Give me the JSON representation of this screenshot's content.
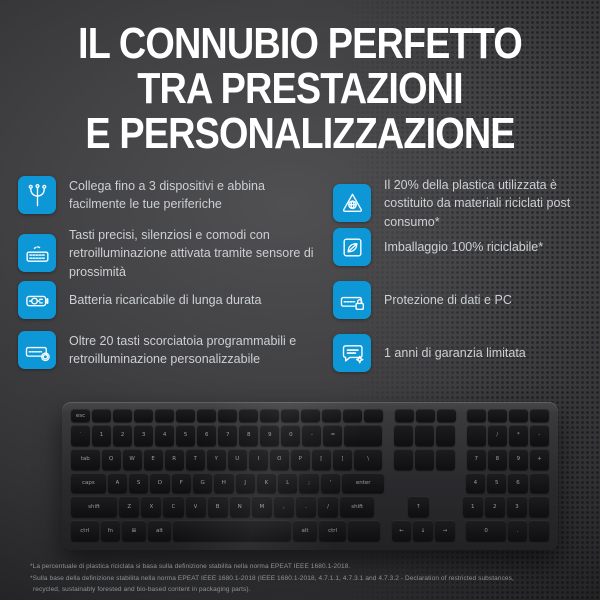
{
  "title": {
    "lines": [
      "IL CONNUBIO PERFETTO",
      "TRA PRESTAZIONI",
      "E PERSONALIZZAZIONE"
    ]
  },
  "features": {
    "left": [
      {
        "icon": "multi-device-icon",
        "text": "Collega fino a 3 dispositivi e abbina facilmente le tue periferiche"
      },
      {
        "icon": "backlit-keyboard-icon",
        "text": "Tasti precisi, silenziosi e comodi con retroilluminazione attivata tramite sensore di prossimità"
      },
      {
        "icon": "rechargeable-battery-icon",
        "text": "Batteria ricaricabile di lunga durata"
      },
      {
        "icon": "programmable-keys-icon",
        "text": "Oltre 20 tasti scorciatoia programmabili e retroilluminazione personalizzabile"
      }
    ],
    "right": [
      {
        "icon": "recycled-plastic-icon",
        "text": "Il 20% della plastica utilizzata è costituito da materiali riciclati post consumo*"
      },
      {
        "icon": "recyclable-packaging-icon",
        "text": "Imballaggio 100% riciclabile*"
      },
      {
        "icon": "data-protection-icon",
        "text": "Protezione di dati e PC"
      },
      {
        "icon": "warranty-icon",
        "text": "1 anni di garanzia limitata"
      }
    ]
  },
  "footnotes": [
    "*La percentuale di plastica riciclata si basa sulla definizione stabilita nella norma EPEAT IEEE 1680.1-2018.",
    "*Sulla base della definizione stabilita nella norma EPEAT IEEE 1680.1-2018 (IEEE 1680.1-2018, 4.7.1.1, 4.7.3.1 and 4.7.3.2 - Declaration of restricted substances,",
    "recycled, sustainably forested and bio-based content in packaging parts)."
  ],
  "colors": {
    "accent_blue": "#0e97d6",
    "title_text": "#ffffff",
    "feature_text": "#ccd0d3",
    "footnote_text": "#8e9295",
    "background_center": "#505052",
    "background_edge": "#161618"
  },
  "keyboard": {
    "rows": [
      {
        "fn": true,
        "cells": [
          [
            "esc",
            1
          ],
          [
            "",
            1
          ],
          [
            "",
            1
          ],
          [
            "",
            1
          ],
          [
            "",
            1
          ],
          [
            "",
            1
          ],
          [
            "",
            1
          ],
          [
            "",
            1
          ],
          [
            "",
            1
          ],
          [
            "",
            1
          ],
          [
            "",
            1
          ],
          [
            "",
            1
          ],
          [
            "",
            1
          ],
          [
            "",
            1
          ],
          [
            "",
            1
          ],
          [
            "",
            0.4,
            "s"
          ],
          [
            "",
            1
          ],
          [
            "",
            1
          ],
          [
            "",
            1
          ],
          [
            "",
            0.4,
            "s"
          ],
          [
            "",
            1
          ],
          [
            "",
            1
          ],
          [
            "",
            1
          ],
          [
            "",
            1
          ]
        ]
      },
      {
        "cells": [
          [
            "`",
            1
          ],
          [
            "1",
            1
          ],
          [
            "2",
            1
          ],
          [
            "3",
            1
          ],
          [
            "4",
            1
          ],
          [
            "5",
            1
          ],
          [
            "6",
            1
          ],
          [
            "7",
            1
          ],
          [
            "8",
            1
          ],
          [
            "9",
            1
          ],
          [
            "0",
            1
          ],
          [
            "-",
            1
          ],
          [
            "=",
            1
          ],
          [
            "",
            2
          ],
          [
            "",
            0.4,
            "s"
          ],
          [
            "",
            1
          ],
          [
            "",
            1
          ],
          [
            "",
            1
          ],
          [
            "",
            0.4,
            "s"
          ],
          [
            "",
            1
          ],
          [
            "/",
            1
          ],
          [
            "*",
            1
          ],
          [
            "-",
            1
          ]
        ]
      },
      {
        "cells": [
          [
            "tab",
            1.5
          ],
          [
            "Q",
            1
          ],
          [
            "W",
            1
          ],
          [
            "E",
            1
          ],
          [
            "R",
            1
          ],
          [
            "T",
            1
          ],
          [
            "Y",
            1
          ],
          [
            "U",
            1
          ],
          [
            "I",
            1
          ],
          [
            "O",
            1
          ],
          [
            "P",
            1
          ],
          [
            "[",
            1
          ],
          [
            "]",
            1
          ],
          [
            "\\",
            1.5
          ],
          [
            "",
            0.4,
            "s"
          ],
          [
            "",
            1
          ],
          [
            "",
            1
          ],
          [
            "",
            1
          ],
          [
            "",
            0.4,
            "s"
          ],
          [
            "7",
            1
          ],
          [
            "8",
            1
          ],
          [
            "9",
            1
          ],
          [
            "+",
            1
          ]
        ]
      },
      {
        "cells": [
          [
            "caps",
            1.8
          ],
          [
            "A",
            1
          ],
          [
            "S",
            1
          ],
          [
            "D",
            1
          ],
          [
            "F",
            1
          ],
          [
            "G",
            1
          ],
          [
            "H",
            1
          ],
          [
            "J",
            1
          ],
          [
            "K",
            1
          ],
          [
            "L",
            1
          ],
          [
            ";",
            1
          ],
          [
            "'",
            1
          ],
          [
            "enter",
            2.2
          ],
          [
            "",
            0.4,
            "s"
          ],
          [
            "",
            3,
            "e"
          ],
          [
            "",
            0.4,
            "s"
          ],
          [
            "4",
            1
          ],
          [
            "5",
            1
          ],
          [
            "6",
            1
          ],
          [
            "",
            1
          ]
        ]
      },
      {
        "cells": [
          [
            "shift",
            2.3
          ],
          [
            "Z",
            1
          ],
          [
            "X",
            1
          ],
          [
            "C",
            1
          ],
          [
            "V",
            1
          ],
          [
            "B",
            1
          ],
          [
            "N",
            1
          ],
          [
            "M",
            1
          ],
          [
            ",",
            1
          ],
          [
            ".",
            1
          ],
          [
            "/",
            1
          ],
          [
            "shift",
            1.7
          ],
          [
            "",
            0.4,
            "s"
          ],
          [
            "",
            1,
            "e"
          ],
          [
            "↑",
            1
          ],
          [
            "",
            1,
            "e"
          ],
          [
            "",
            0.4,
            "s"
          ],
          [
            "1",
            1
          ],
          [
            "2",
            1
          ],
          [
            "3",
            1
          ],
          [
            "",
            1
          ]
        ]
      },
      {
        "cells": [
          [
            "ctrl",
            1.4
          ],
          [
            "fn",
            1
          ],
          [
            "⊞",
            1.2
          ],
          [
            "alt",
            1.2
          ],
          [
            "",
            6
          ],
          [
            "alt",
            1.2
          ],
          [
            "ctrl",
            1.4
          ],
          [
            "",
            1.6
          ],
          [
            "",
            0.4,
            "s"
          ],
          [
            "←",
            1
          ],
          [
            "↓",
            1
          ],
          [
            "→",
            1
          ],
          [
            "",
            0.4,
            "s"
          ],
          [
            "0",
            2
          ],
          [
            ".",
            1
          ],
          [
            "",
            1
          ]
        ]
      }
    ]
  }
}
